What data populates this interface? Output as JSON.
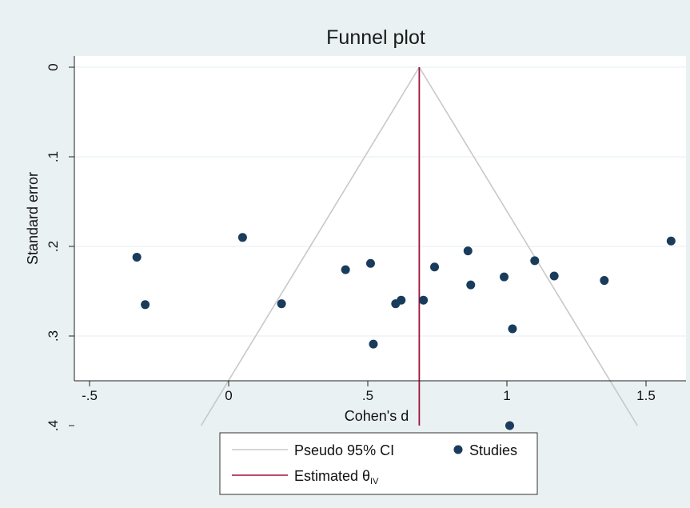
{
  "chart_data": {
    "type": "scatter",
    "title": "Funnel plot",
    "xlabel": "Cohen's d",
    "ylabel": "Standard error",
    "xlim": [
      -0.55,
      1.6
    ],
    "ylim": [
      0,
      0.4
    ],
    "y_reversed": true,
    "grid": "horizontal",
    "x_ticks": [
      -0.5,
      0,
      0.5,
      1,
      1.5
    ],
    "x_tick_labels": [
      "-.5",
      "0",
      ".5",
      "1",
      "1.5"
    ],
    "y_ticks": [
      0,
      0.1,
      0.2,
      0.3,
      0.4
    ],
    "y_tick_labels": [
      "0",
      ".1",
      ".2",
      ".3",
      ".4"
    ],
    "estimate": 0.685,
    "ci_multiplier": 1.96,
    "series": [
      {
        "name": "Studies",
        "points": [
          {
            "x": -0.33,
            "y": 0.212
          },
          {
            "x": -0.3,
            "y": 0.265
          },
          {
            "x": 0.05,
            "y": 0.19
          },
          {
            "x": 0.19,
            "y": 0.264
          },
          {
            "x": 0.42,
            "y": 0.226
          },
          {
            "x": 0.51,
            "y": 0.219
          },
          {
            "x": 0.52,
            "y": 0.309
          },
          {
            "x": 0.6,
            "y": 0.264
          },
          {
            "x": 0.62,
            "y": 0.26
          },
          {
            "x": 0.7,
            "y": 0.26
          },
          {
            "x": 0.74,
            "y": 0.223
          },
          {
            "x": 0.86,
            "y": 0.205
          },
          {
            "x": 0.87,
            "y": 0.243
          },
          {
            "x": 0.99,
            "y": 0.234
          },
          {
            "x": 1.01,
            "y": 0.4
          },
          {
            "x": 1.02,
            "y": 0.292
          },
          {
            "x": 1.1,
            "y": 0.216
          },
          {
            "x": 1.17,
            "y": 0.233
          },
          {
            "x": 1.35,
            "y": 0.238
          },
          {
            "x": 1.59,
            "y": 0.194
          }
        ]
      }
    ],
    "legend": {
      "placement": "bottom",
      "items": [
        {
          "label": "Pseudo 95% CI",
          "kind": "line",
          "color": "#c8c8c8"
        },
        {
          "label": "Studies",
          "kind": "marker",
          "color": "#1a3c5c"
        },
        {
          "label": "Estimated θ",
          "subscript": "IV",
          "kind": "line",
          "color": "#a0123c"
        }
      ]
    },
    "colors": {
      "background": "#eaf1f3",
      "plot_area": "#ffffff",
      "ci_lines": "#c8c8c8",
      "estimate_line": "#a0123c",
      "markers": "#1a3c5c",
      "grid": "#e6eef1"
    }
  }
}
